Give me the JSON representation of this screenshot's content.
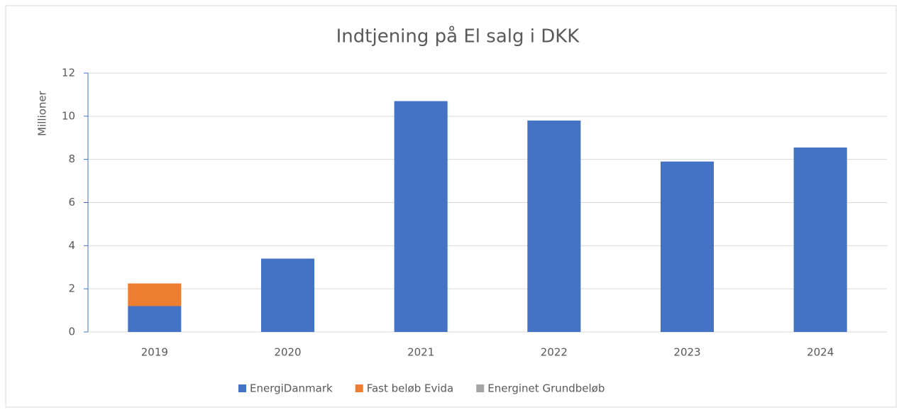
{
  "chart_data": {
    "type": "bar",
    "stacked": true,
    "title": "Indtjening på El salg i DKK",
    "y_label": "Millioner",
    "categories": [
      "2019",
      "2020",
      "2021",
      "2022",
      "2023",
      "2024"
    ],
    "series": [
      {
        "name": "EnergiDanmark",
        "color": "#4472c4",
        "values": [
          1.2,
          3.4,
          10.7,
          9.8,
          7.9,
          8.55
        ]
      },
      {
        "name": "Fast beløb Evida",
        "color": "#ed7d31",
        "values": [
          1.05,
          0,
          0,
          0,
          0,
          0
        ]
      },
      {
        "name": "Energinet Grundbeløb",
        "color": "#a5a5a5",
        "values": [
          0,
          0,
          0,
          0,
          0,
          0
        ]
      }
    ],
    "ylim": [
      0,
      12
    ],
    "yticks": [
      0,
      2,
      4,
      6,
      8,
      10,
      12
    ],
    "grid": true,
    "legend": "bottom"
  }
}
